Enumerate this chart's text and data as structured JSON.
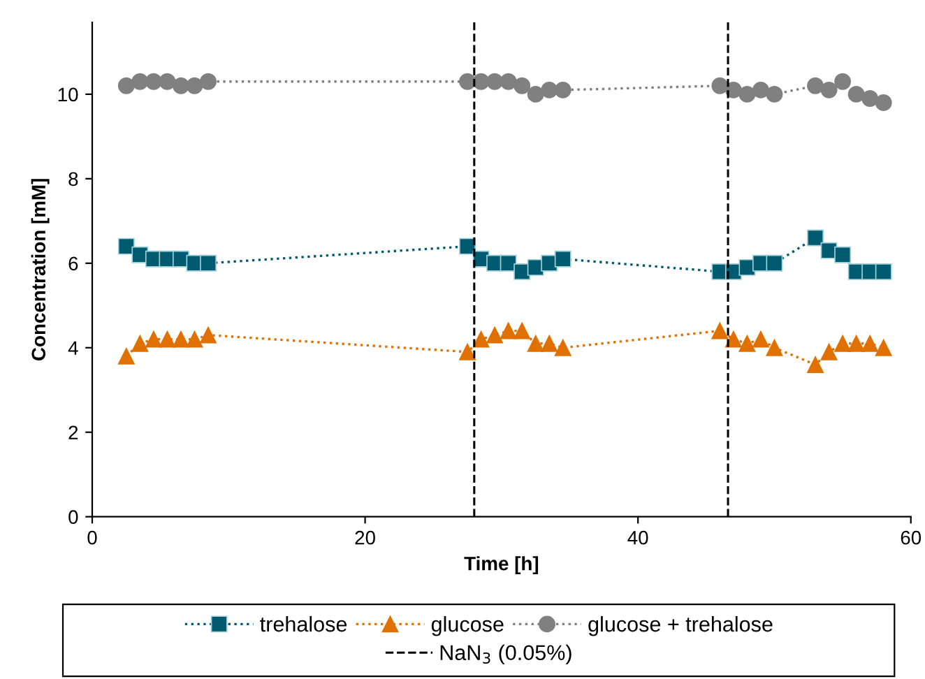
{
  "chart_data": {
    "type": "line",
    "xlabel": "Time [h]",
    "ylabel": "Concentration [mM]",
    "xlim": [
      0,
      60
    ],
    "xticks": [
      0,
      20,
      40,
      60
    ],
    "ylim": [
      0,
      11.7
    ],
    "yticks": [
      0,
      2,
      4,
      6,
      8,
      10
    ],
    "x": [
      2.5,
      3.5,
      4.5,
      5.5,
      6.5,
      7.5,
      8.5,
      27.5,
      28.5,
      29.5,
      30.5,
      31.5,
      32.5,
      33.5,
      34.5,
      46,
      47,
      48,
      49,
      50,
      53,
      54,
      55,
      56,
      57,
      58
    ],
    "series": [
      {
        "name": "trehalose",
        "color": "#005a70",
        "marker": "square",
        "values": [
          6.4,
          6.2,
          6.1,
          6.1,
          6.1,
          6.0,
          6.0,
          6.4,
          6.1,
          6.0,
          6.0,
          5.8,
          5.9,
          6.0,
          6.1,
          5.8,
          5.8,
          5.9,
          6.0,
          6.0,
          6.6,
          6.3,
          6.2,
          5.8,
          5.8,
          5.8
        ]
      },
      {
        "name": "glucose",
        "color": "#e07000",
        "marker": "triangle",
        "values": [
          3.8,
          4.1,
          4.2,
          4.2,
          4.2,
          4.2,
          4.3,
          3.9,
          4.2,
          4.3,
          4.4,
          4.4,
          4.1,
          4.1,
          4.0,
          4.4,
          4.2,
          4.1,
          4.2,
          4.0,
          3.6,
          3.9,
          4.1,
          4.1,
          4.1,
          4.0
        ]
      },
      {
        "name": "glucose + trehalose",
        "color": "#808080",
        "marker": "circle",
        "values": [
          10.2,
          10.3,
          10.3,
          10.3,
          10.2,
          10.2,
          10.3,
          10.3,
          10.3,
          10.3,
          10.3,
          10.2,
          10.0,
          10.1,
          10.1,
          10.2,
          10.1,
          10.0,
          10.1,
          10.0,
          10.2,
          10.1,
          10.3,
          10.0,
          9.9,
          9.8
        ]
      }
    ],
    "ref_lines": [
      {
        "axis": "x",
        "value": 28,
        "label": "NaN$_{3}$ (0.05%)",
        "color": "#000000",
        "line_style": "dashed"
      },
      {
        "axis": "x",
        "value": 46.6,
        "color": "#000000",
        "line_style": "dashed"
      }
    ],
    "line_style": "dotted",
    "legend": "bottom",
    "grid": false
  }
}
